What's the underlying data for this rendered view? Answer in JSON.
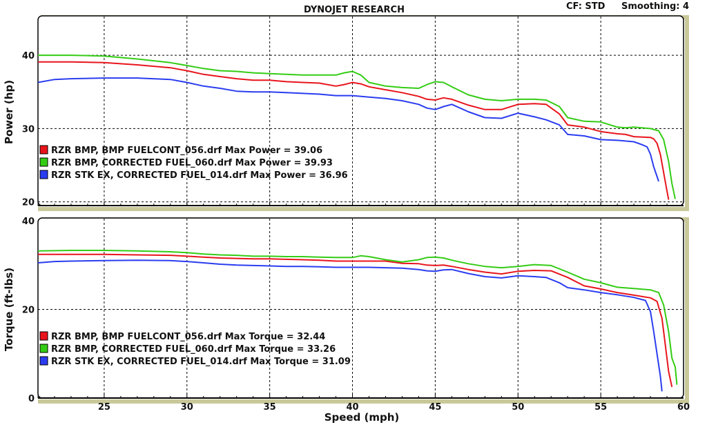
{
  "header": {
    "title": "DYNOJET RESEARCH",
    "cf": "CF: STD",
    "smoothing": "Smoothing: 4"
  },
  "colors": {
    "red": "#e8141c",
    "green": "#33cc14",
    "blue": "#2a3cf0",
    "grid": "#000000",
    "frame_shadow": "#c8c89a"
  },
  "chart_data": [
    {
      "type": "line",
      "xlabel": "Speed (mph)",
      "ylabel": "Power (hp)",
      "xlim": [
        21,
        60
      ],
      "ylim": [
        19.5,
        45
      ],
      "xticks": [
        25,
        30,
        35,
        40,
        45,
        50,
        55,
        60
      ],
      "yticks": [
        20,
        30,
        40
      ],
      "grid": true,
      "legend_position": "lower-left",
      "series": [
        {
          "name": "RZR BMP, BMP FUELCONT_056.drf Max Power = 39.06",
          "color": "red",
          "x": [
            21,
            23,
            25,
            27,
            29,
            30,
            31,
            32,
            33,
            34,
            35,
            36,
            37,
            38,
            39,
            39.5,
            40,
            40.5,
            41,
            42,
            43,
            44,
            44.5,
            45,
            45.5,
            46,
            47,
            48,
            49,
            50,
            51,
            51.7,
            52.5,
            53,
            54,
            55,
            56,
            56.5,
            57,
            58,
            58.2,
            58.4,
            58.6,
            58.8,
            59,
            59.1
          ],
          "y": [
            39.1,
            39.1,
            39.0,
            38.7,
            38.3,
            37.9,
            37.4,
            37.1,
            36.8,
            36.6,
            36.6,
            36.4,
            36.3,
            36.2,
            35.8,
            36.0,
            36.3,
            36.1,
            35.7,
            35.3,
            34.9,
            34.4,
            34.0,
            33.9,
            34.2,
            34.0,
            33.2,
            32.6,
            32.6,
            33.3,
            33.4,
            33.3,
            32.0,
            30.5,
            30.2,
            29.6,
            29.3,
            29.2,
            28.9,
            28.8,
            28.6,
            28.0,
            26.5,
            24.0,
            21.5,
            20.3
          ]
        },
        {
          "name": "RZR BMP, CORRECTED FUEL_060.drf Max Power = 39.93",
          "color": "green",
          "x": [
            21,
            23,
            25,
            27,
            29,
            30,
            31,
            32,
            33,
            34,
            35,
            36,
            37,
            38,
            39,
            39.5,
            40,
            40.5,
            41,
            42,
            43,
            44,
            44.5,
            45,
            45.5,
            46,
            47,
            48,
            49,
            50,
            51,
            51.7,
            52.5,
            53,
            54,
            55,
            56,
            56.5,
            57,
            58,
            58.5,
            58.8,
            59.1,
            59.3,
            59.5
          ],
          "y": [
            40.0,
            40.0,
            39.9,
            39.5,
            39.0,
            38.6,
            38.2,
            37.9,
            37.8,
            37.6,
            37.5,
            37.4,
            37.3,
            37.3,
            37.3,
            37.6,
            37.8,
            37.3,
            36.3,
            35.8,
            35.6,
            35.5,
            36.0,
            36.4,
            36.3,
            35.7,
            34.6,
            34.0,
            33.8,
            34.0,
            34.0,
            33.9,
            33.0,
            31.5,
            31.0,
            30.9,
            30.2,
            30.1,
            30.2,
            30.0,
            29.7,
            28.5,
            25.5,
            22.5,
            20.4
          ]
        },
        {
          "name": "RZR STK EX, CORRECTED FUEL_014.drf Max Power = 36.96",
          "color": "blue",
          "x": [
            21,
            22,
            23,
            25,
            27,
            29,
            30,
            31,
            32,
            33,
            34,
            35,
            36,
            37,
            38,
            39,
            40,
            41,
            42,
            43,
            44,
            44.5,
            45,
            45.5,
            46,
            47,
            48,
            49,
            50,
            51,
            51.7,
            52.5,
            53,
            54,
            55,
            56,
            57,
            57.5,
            57.8,
            58.0,
            58.2,
            58.5
          ],
          "y": [
            36.3,
            36.7,
            36.8,
            36.9,
            36.9,
            36.7,
            36.3,
            35.8,
            35.5,
            35.1,
            35.0,
            35.0,
            34.9,
            34.8,
            34.7,
            34.5,
            34.5,
            34.3,
            34.1,
            33.8,
            33.3,
            32.8,
            32.6,
            33.0,
            33.3,
            32.3,
            31.5,
            31.4,
            32.1,
            31.6,
            31.2,
            30.5,
            29.2,
            29.0,
            28.5,
            28.4,
            28.2,
            27.8,
            27.5,
            26.5,
            24.8,
            22.8
          ]
        }
      ]
    },
    {
      "type": "line",
      "xlabel": "Speed (mph)",
      "ylabel": "Torque (ft-lbs)",
      "xlim": [
        21,
        60
      ],
      "ylim": [
        0,
        40
      ],
      "xticks": [
        25,
        30,
        35,
        40,
        45,
        50,
        55,
        60
      ],
      "yticks": [
        0,
        20,
        40
      ],
      "grid": true,
      "legend_position": "lower-left",
      "series": [
        {
          "name": "RZR BMP, BMP FUELCONT_056.drf Max Torque = 32.44",
          "color": "red",
          "x": [
            21,
            23,
            25,
            27,
            29,
            30,
            31,
            32,
            33,
            34,
            35,
            36,
            37,
            38,
            39,
            40,
            41,
            42,
            43,
            44,
            44.5,
            45,
            45.5,
            46,
            47,
            48,
            49,
            50,
            51,
            52,
            53,
            54,
            55,
            56,
            57,
            58,
            58.4,
            58.7,
            58.9,
            59.1,
            59.3
          ],
          "y": [
            32.4,
            32.4,
            32.4,
            32.3,
            32.2,
            32.0,
            31.8,
            31.6,
            31.5,
            31.4,
            31.4,
            31.3,
            31.2,
            31.1,
            30.9,
            30.9,
            30.9,
            30.9,
            30.4,
            30.3,
            30.0,
            29.9,
            30.0,
            29.7,
            29.0,
            28.4,
            28.0,
            28.6,
            28.8,
            28.7,
            27.2,
            25.3,
            24.6,
            23.8,
            23.2,
            22.6,
            21.8,
            18.0,
            12.0,
            6.0,
            2.5
          ]
        },
        {
          "name": "RZR BMP, CORRECTED FUEL_060.drf Max Torque = 33.26",
          "color": "green",
          "x": [
            21,
            23,
            25,
            27,
            29,
            30,
            31,
            32,
            33,
            34,
            35,
            36,
            37,
            38,
            39,
            40,
            40.5,
            41,
            42,
            43,
            44,
            44.5,
            45,
            45.5,
            46,
            47,
            48,
            49,
            50,
            51,
            52,
            53,
            54,
            55,
            56,
            57,
            58,
            58.5,
            58.8,
            59.1,
            59.3,
            59.5,
            59.6
          ],
          "y": [
            33.2,
            33.3,
            33.3,
            33.2,
            33.0,
            32.8,
            32.5,
            32.3,
            32.2,
            32.0,
            32.0,
            31.9,
            31.9,
            31.8,
            31.7,
            31.7,
            32.1,
            31.9,
            31.2,
            30.7,
            31.2,
            31.7,
            31.8,
            31.6,
            31.1,
            30.3,
            29.7,
            29.4,
            29.7,
            30.1,
            29.9,
            28.4,
            26.8,
            26.0,
            25.0,
            24.7,
            24.4,
            23.8,
            21.0,
            15.0,
            9.0,
            7.0,
            3.0
          ]
        },
        {
          "name": "RZR STK EX, CORRECTED FUEL_014.drf Max Torque = 31.09",
          "color": "blue",
          "x": [
            21,
            22,
            23,
            25,
            27,
            29,
            30,
            31,
            32,
            33,
            34,
            35,
            36,
            37,
            38,
            39,
            40,
            41,
            42,
            43,
            44,
            44.5,
            45,
            45.5,
            46,
            47,
            48,
            49,
            50,
            51,
            51.7,
            52.5,
            53,
            54,
            55,
            56,
            57,
            57.7,
            58.0,
            58.2,
            58.4,
            58.6,
            58.7
          ],
          "y": [
            30.5,
            30.8,
            30.9,
            31.0,
            31.1,
            31.0,
            30.8,
            30.5,
            30.2,
            30.0,
            29.9,
            29.8,
            29.7,
            29.7,
            29.6,
            29.5,
            29.5,
            29.5,
            29.4,
            29.3,
            29.0,
            28.7,
            28.6,
            28.9,
            29.0,
            28.1,
            27.4,
            27.1,
            27.6,
            27.4,
            27.2,
            26.0,
            24.9,
            24.4,
            23.8,
            23.3,
            22.7,
            22.0,
            19.5,
            15.0,
            10.0,
            5.0,
            1.5
          ]
        }
      ]
    }
  ]
}
